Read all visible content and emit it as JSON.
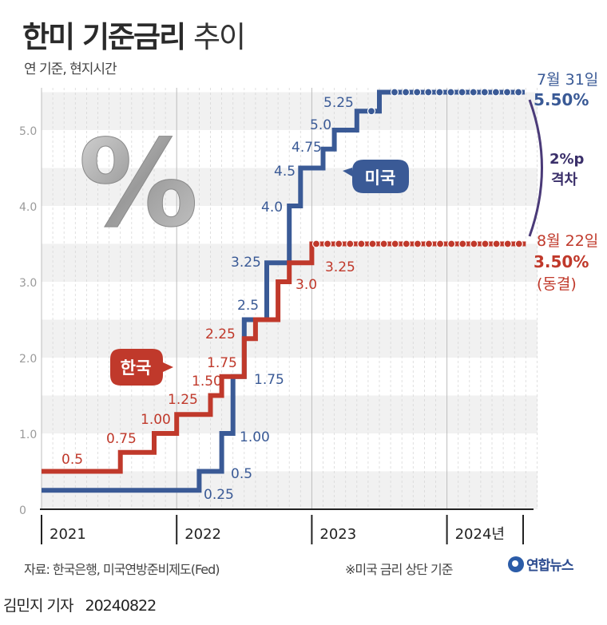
{
  "title": {
    "bold": "한미 기준금리",
    "light": "추이"
  },
  "subtitle": "연 기준, 현지시간",
  "percent_symbol": "%",
  "chart_data": {
    "type": "line",
    "title": "한미 기준금리 추이",
    "subtitle": "연 기준, 현지시간",
    "ylim": [
      0,
      5.5
    ],
    "yticks": [
      "0",
      "1.0",
      "2.0",
      "3.0",
      "4.0",
      "5.0"
    ],
    "xticks": [
      "2021",
      "2022",
      "2023",
      "2024년"
    ],
    "grid": true,
    "series": [
      {
        "name": "미국",
        "color": "#3a5a96",
        "points": [
          {
            "x": "2021-01",
            "y": 0.25
          },
          {
            "x": "2022-03",
            "y": 0.5
          },
          {
            "x": "2022-05",
            "y": 1.0
          },
          {
            "x": "2022-06",
            "y": 1.75
          },
          {
            "x": "2022-07",
            "y": 2.5
          },
          {
            "x": "2022-09",
            "y": 3.25
          },
          {
            "x": "2022-11",
            "y": 4.0
          },
          {
            "x": "2022-12",
            "y": 4.5
          },
          {
            "x": "2023-02",
            "y": 4.75
          },
          {
            "x": "2023-03",
            "y": 5.0
          },
          {
            "x": "2023-05",
            "y": 5.25
          },
          {
            "x": "2023-07",
            "y": 5.5
          },
          {
            "x": "2024-07",
            "y": 5.5
          }
        ],
        "labels": [
          "0.25",
          "0.5",
          "1.00",
          "1.75",
          "2.5",
          "3.25",
          "4.0",
          "4.5",
          "4.75",
          "5.0",
          "5.25"
        ],
        "end_date": "7월 31일",
        "end_value": "5.50%"
      },
      {
        "name": "한국",
        "color": "#c0392b",
        "points": [
          {
            "x": "2021-01",
            "y": 0.5
          },
          {
            "x": "2021-08",
            "y": 0.75
          },
          {
            "x": "2021-11",
            "y": 1.0
          },
          {
            "x": "2022-01",
            "y": 1.25
          },
          {
            "x": "2022-04",
            "y": 1.5
          },
          {
            "x": "2022-05",
            "y": 1.75
          },
          {
            "x": "2022-07",
            "y": 2.25
          },
          {
            "x": "2022-08",
            "y": 2.5
          },
          {
            "x": "2022-10",
            "y": 3.0
          },
          {
            "x": "2022-11",
            "y": 3.25
          },
          {
            "x": "2023-01",
            "y": 3.5
          },
          {
            "x": "2024-08",
            "y": 3.5
          }
        ],
        "labels": [
          "0.5",
          "0.75",
          "1.00",
          "1.25",
          "1.50",
          "1.75",
          "2.25",
          "3.0",
          "3.25"
        ],
        "end_date": "8월 22일",
        "end_value": "3.50%",
        "end_note": "(동결)"
      }
    ],
    "gap": {
      "value": "2%p",
      "label": "격차"
    }
  },
  "footer": {
    "source": "자료: 한국은행, 미국연방준비제도(Fed)",
    "note": "※미국 금리 상단 기준",
    "logo": "연합뉴스"
  },
  "credit": {
    "author": "김민지 기자",
    "date": "20240822"
  }
}
